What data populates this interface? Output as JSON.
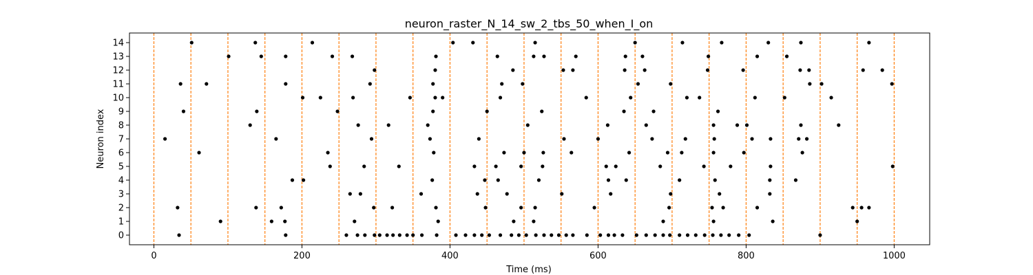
{
  "chart_data": {
    "type": "scatter",
    "title": "neuron_raster_N_14_sw_2_tbs_50_when_I_on",
    "xlabel": "Time (ms)",
    "ylabel": "Neuron index",
    "xlim": [
      -33,
      1048
    ],
    "ylim": [
      -0.7,
      14.7
    ],
    "x_ticks": [
      0,
      200,
      400,
      600,
      800,
      1000
    ],
    "y_ticks": [
      0,
      1,
      2,
      3,
      4,
      5,
      6,
      7,
      8,
      9,
      10,
      11,
      12,
      13,
      14
    ],
    "grid": false,
    "point_color": "#000000",
    "vline_color": "#ff7f0e",
    "vlines": [
      0,
      50,
      100,
      150,
      200,
      250,
      300,
      350,
      400,
      450,
      500,
      550,
      600,
      650,
      700,
      750,
      800,
      850,
      900,
      950,
      1000
    ],
    "series": [
      {
        "x": [
          34,
          178,
          260,
          275,
          285,
          298,
          305,
          315,
          323,
          332,
          342,
          350,
          362,
          382,
          408,
          421,
          433,
          443,
          453,
          468,
          483,
          493,
          503,
          516,
          527,
          537,
          547,
          557,
          566,
          585,
          603,
          614,
          622,
          633,
          652,
          665,
          677,
          688,
          697,
          710,
          721,
          732,
          744,
          755,
          766,
          777,
          790,
          804,
          900
        ],
        "y": [
          0,
          0,
          0,
          0,
          0,
          0,
          0,
          0,
          0,
          0,
          0,
          0,
          0,
          0,
          0,
          0,
          0,
          0,
          0,
          0,
          0,
          0,
          0,
          0,
          0,
          0,
          0,
          0,
          0,
          0,
          0,
          0,
          0,
          0,
          0,
          0,
          0,
          0,
          0,
          0,
          0,
          0,
          0,
          0,
          0,
          0,
          0,
          0,
          0
        ]
      },
      {
        "x": [
          90,
          159,
          177,
          271,
          384,
          486,
          513,
          688,
          756,
          836,
          950
        ],
        "y": [
          1,
          1,
          1,
          1,
          1,
          1,
          1,
          1,
          1,
          1,
          1
        ]
      },
      {
        "x": [
          32,
          138,
          172,
          297,
          322,
          381,
          448,
          496,
          515,
          595,
          696,
          754,
          769,
          815,
          944,
          956,
          966
        ],
        "y": [
          2,
          2,
          2,
          2,
          2,
          2,
          2,
          2,
          2,
          2,
          2,
          2,
          2,
          2,
          2,
          2,
          2
        ]
      },
      {
        "x": [
          265,
          279,
          361,
          437,
          477,
          551,
          617,
          698,
          764,
          832
        ],
        "y": [
          3,
          3,
          3,
          3,
          3,
          3,
          3,
          3,
          3,
          3
        ]
      },
      {
        "x": [
          187,
          202,
          376,
          447,
          465,
          520,
          614,
          638,
          710,
          758,
          832,
          867
        ],
        "y": [
          4,
          4,
          4,
          4,
          4,
          4,
          4,
          4,
          4,
          4,
          4,
          4
        ]
      },
      {
        "x": [
          238,
          284,
          331,
          433,
          462,
          496,
          525,
          611,
          624,
          684,
          743,
          779,
          833,
          998
        ],
        "y": [
          5,
          5,
          5,
          5,
          5,
          5,
          5,
          5,
          5,
          5,
          5,
          5,
          5,
          5
        ]
      },
      {
        "x": [
          61,
          235,
          378,
          473,
          500,
          526,
          564,
          642,
          694,
          713,
          756,
          797,
          876
        ],
        "y": [
          6,
          6,
          6,
          6,
          6,
          6,
          6,
          6,
          6,
          6,
          6,
          6,
          6
        ]
      },
      {
        "x": [
          15,
          165,
          294,
          373,
          439,
          554,
          600,
          673,
          718,
          757,
          808,
          833,
          871,
          882
        ],
        "y": [
          7,
          7,
          7,
          7,
          7,
          7,
          7,
          7,
          7,
          7,
          7,
          7,
          7,
          7
        ]
      },
      {
        "x": [
          130,
          276,
          317,
          370,
          505,
          613,
          665,
          756,
          788,
          801,
          874,
          925
        ],
        "y": [
          8,
          8,
          8,
          8,
          8,
          8,
          8,
          8,
          8,
          8,
          8,
          8
        ]
      },
      {
        "x": [
          40,
          139,
          248,
          377,
          450,
          524,
          635,
          675,
          762
        ],
        "y": [
          9,
          9,
          9,
          9,
          9,
          9,
          9,
          9,
          9
        ]
      },
      {
        "x": [
          201,
          225,
          269,
          346,
          380,
          390,
          468,
          584,
          644,
          720,
          737,
          812,
          852,
          915
        ],
        "y": [
          10,
          10,
          10,
          10,
          10,
          10,
          10,
          10,
          10,
          10,
          10,
          10,
          10,
          10
        ]
      },
      {
        "x": [
          36,
          71,
          178,
          292,
          377,
          470,
          498,
          654,
          698,
          886,
          902,
          997
        ],
        "y": [
          11,
          11,
          11,
          11,
          11,
          11,
          11,
          11,
          11,
          11,
          11,
          11
        ]
      },
      {
        "x": [
          298,
          380,
          485,
          553,
          566,
          636,
          663,
          748,
          796,
          873,
          885,
          958,
          984
        ],
        "y": [
          12,
          12,
          12,
          12,
          12,
          12,
          12,
          12,
          12,
          12,
          12,
          12,
          12
        ]
      },
      {
        "x": [
          101,
          145,
          178,
          241,
          268,
          381,
          464,
          513,
          527,
          570,
          637,
          660,
          749,
          815,
          855
        ],
        "y": [
          13,
          13,
          13,
          13,
          13,
          13,
          13,
          13,
          13,
          13,
          13,
          13,
          13,
          13,
          13
        ]
      },
      {
        "x": [
          51,
          137,
          214,
          404,
          431,
          515,
          650,
          714,
          767,
          830,
          874,
          966
        ],
        "y": [
          14,
          14,
          14,
          14,
          14,
          14,
          14,
          14,
          14,
          14,
          14,
          14
        ]
      }
    ]
  }
}
